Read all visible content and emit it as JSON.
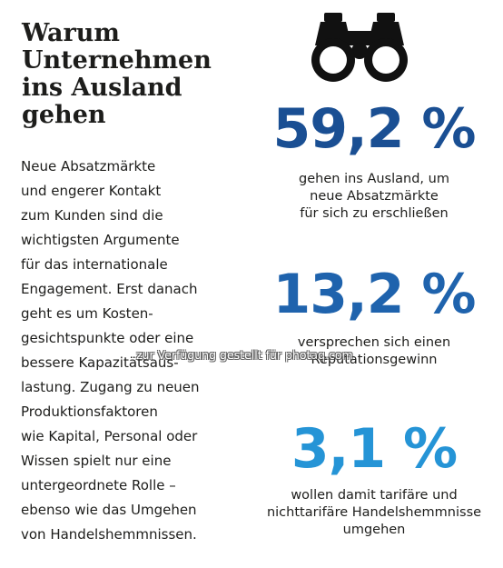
{
  "title_lines": [
    "Warum",
    "Unternehmen",
    "ins Ausland",
    "gehen"
  ],
  "body_lines": [
    "Neue Absatzmärkte",
    "und engerer Kontakt",
    "zum Kunden sind die",
    "wichtigsten Argumente",
    "für das internationale",
    "Engagement. Erst danach",
    "geht es um Kosten-",
    "gesichtspunkte oder eine",
    "bessere Kapazitätsaus-",
    "lastung. Zugang zu neuen",
    "Produktionsfaktoren",
    "wie Kapital, Personal oder",
    "Wissen spielt nur eine",
    "untergeordnete Rolle –",
    "ebenso wie das Umgehen",
    "von Handelshemmnissen."
  ],
  "icon": "binoculars-icon",
  "stats": [
    {
      "value": "59,2 %",
      "percent": 59.2,
      "color": "#1a4f93",
      "desc_lines": [
        "gehen ins Ausland, um",
        "neue Absatzmärkte",
        "für sich zu erschließen"
      ]
    },
    {
      "value": "13,2 %",
      "percent": 13.2,
      "color": "#1f63ad",
      "desc_lines": [
        "versprechen sich einen",
        "Reputationsgewinn"
      ]
    },
    {
      "value": "3,1 %",
      "percent": 3.1,
      "color": "#2594d6",
      "desc_lines": [
        "wollen damit tarifäre und",
        "nichttarifäre Handelshemmnisse",
        "umgehen"
      ]
    }
  ],
  "watermark": "zur Verfügung gestellt für photaq.com"
}
